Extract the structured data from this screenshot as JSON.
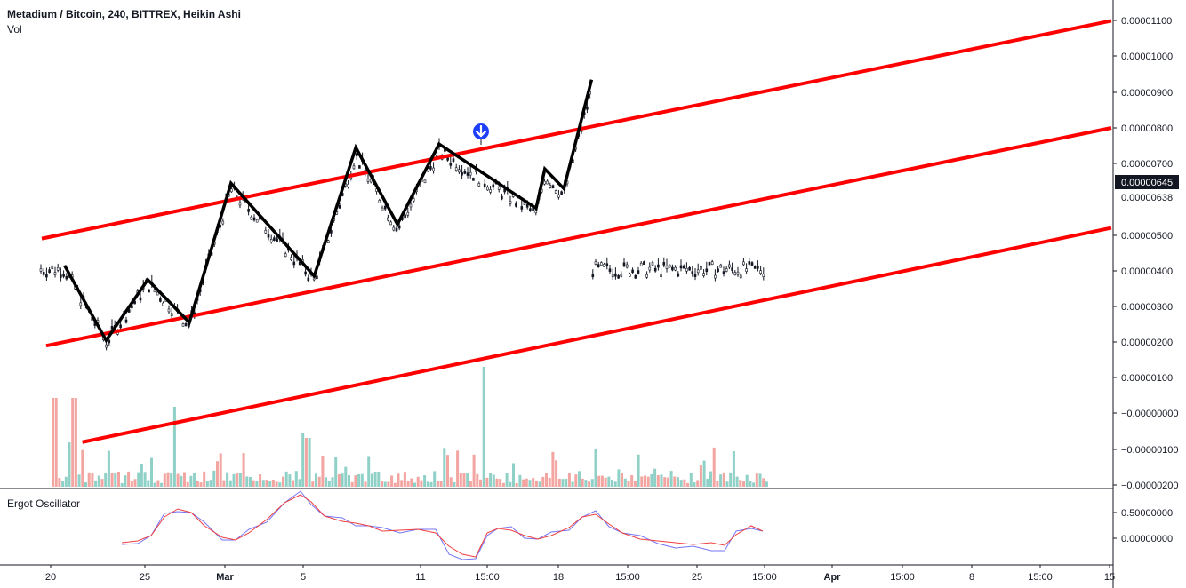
{
  "header": {
    "title": "Metadium / Bitcoin, 240, BITTREX, Heikin Ashi",
    "vol_label": "Vol",
    "osc_label": "Ergot Oscillator"
  },
  "colors": {
    "channel": "#ff0000",
    "zigzag": "#000000",
    "vol_up": "#8fd0c7",
    "vol_down": "#f3a5a1",
    "osc_fast": "#7575f5",
    "osc_slow": "#f04040",
    "signal": "#1f3fff",
    "last_price_bg": "#131722"
  },
  "price_axis": {
    "ticks": [
      "0.00001100",
      "0.00001000",
      "0.00000900",
      "0.00000800",
      "0.00000700",
      "0.00000500",
      "0.00000400",
      "0.00000300",
      "0.00000200",
      "0.00000100",
      "−0.00000000",
      "−0.00000100",
      "−0.00000200"
    ],
    "current_price": "0.00000645",
    "current_price_raw": "0.00000638"
  },
  "osc_axis": {
    "ticks": [
      "0.50000000",
      "0.00000000"
    ]
  },
  "time_axis": {
    "ticks": [
      {
        "label": "20",
        "bold": false
      },
      {
        "label": "25",
        "bold": false
      },
      {
        "label": "Mar",
        "bold": true
      },
      {
        "label": "5",
        "bold": false
      },
      {
        "label": "11",
        "bold": false
      },
      {
        "label": "15:00",
        "bold": false
      },
      {
        "label": "18",
        "bold": false
      },
      {
        "label": "15:00",
        "bold": false
      },
      {
        "label": "25",
        "bold": false
      },
      {
        "label": "15:00",
        "bold": false
      },
      {
        "label": "Apr",
        "bold": true
      },
      {
        "label": "15:00",
        "bold": false
      },
      {
        "label": "8",
        "bold": false
      },
      {
        "label": "15:00",
        "bold": false
      },
      {
        "label": "15",
        "bold": false
      }
    ]
  },
  "chart_data": {
    "type": "line",
    "title": "Metadium / Bitcoin, 240, BITTREX, Heikin Ashi",
    "x_unit": "date (Feb 20 - Apr 15)",
    "ylim": [
      -2e-06,
      1.1e-05
    ],
    "grid": false,
    "series": [
      {
        "name": "zigzag",
        "x": [
          "Feb 21",
          "Feb 24",
          "Feb 27",
          "Mar 2",
          "Mar 5",
          "Mar 11",
          "Mar 14",
          "Mar 17",
          "Mar 20",
          "Mar 27",
          "Mar 27 15:00",
          "Mar 29",
          "Mar 31"
        ],
        "values": [
          4.15e-06,
          2.05e-06,
          3.75e-06,
          2.55e-06,
          6.45e-06,
          3.85e-06,
          7.45e-06,
          5.3e-06,
          7.55e-06,
          5.75e-06,
          6.85e-06,
          6.3e-06,
          9.35e-06
        ]
      },
      {
        "name": "upper-channel",
        "x": [
          "Feb 20",
          "Apr 15"
        ],
        "values": [
          4.9e-06,
          1.1e-05
        ]
      },
      {
        "name": "middle-channel",
        "x": [
          "Feb 20",
          "Apr 15"
        ],
        "values": [
          1.9e-06,
          8e-06
        ]
      },
      {
        "name": "lower-channel",
        "x": [
          "Feb 21",
          "Apr 15"
        ],
        "values": [
          -8e-07,
          5.2e-06
        ]
      }
    ],
    "signal_marker": {
      "x": "Mar 14 15:00",
      "direction": "down"
    },
    "last_price": 6.45e-06
  }
}
